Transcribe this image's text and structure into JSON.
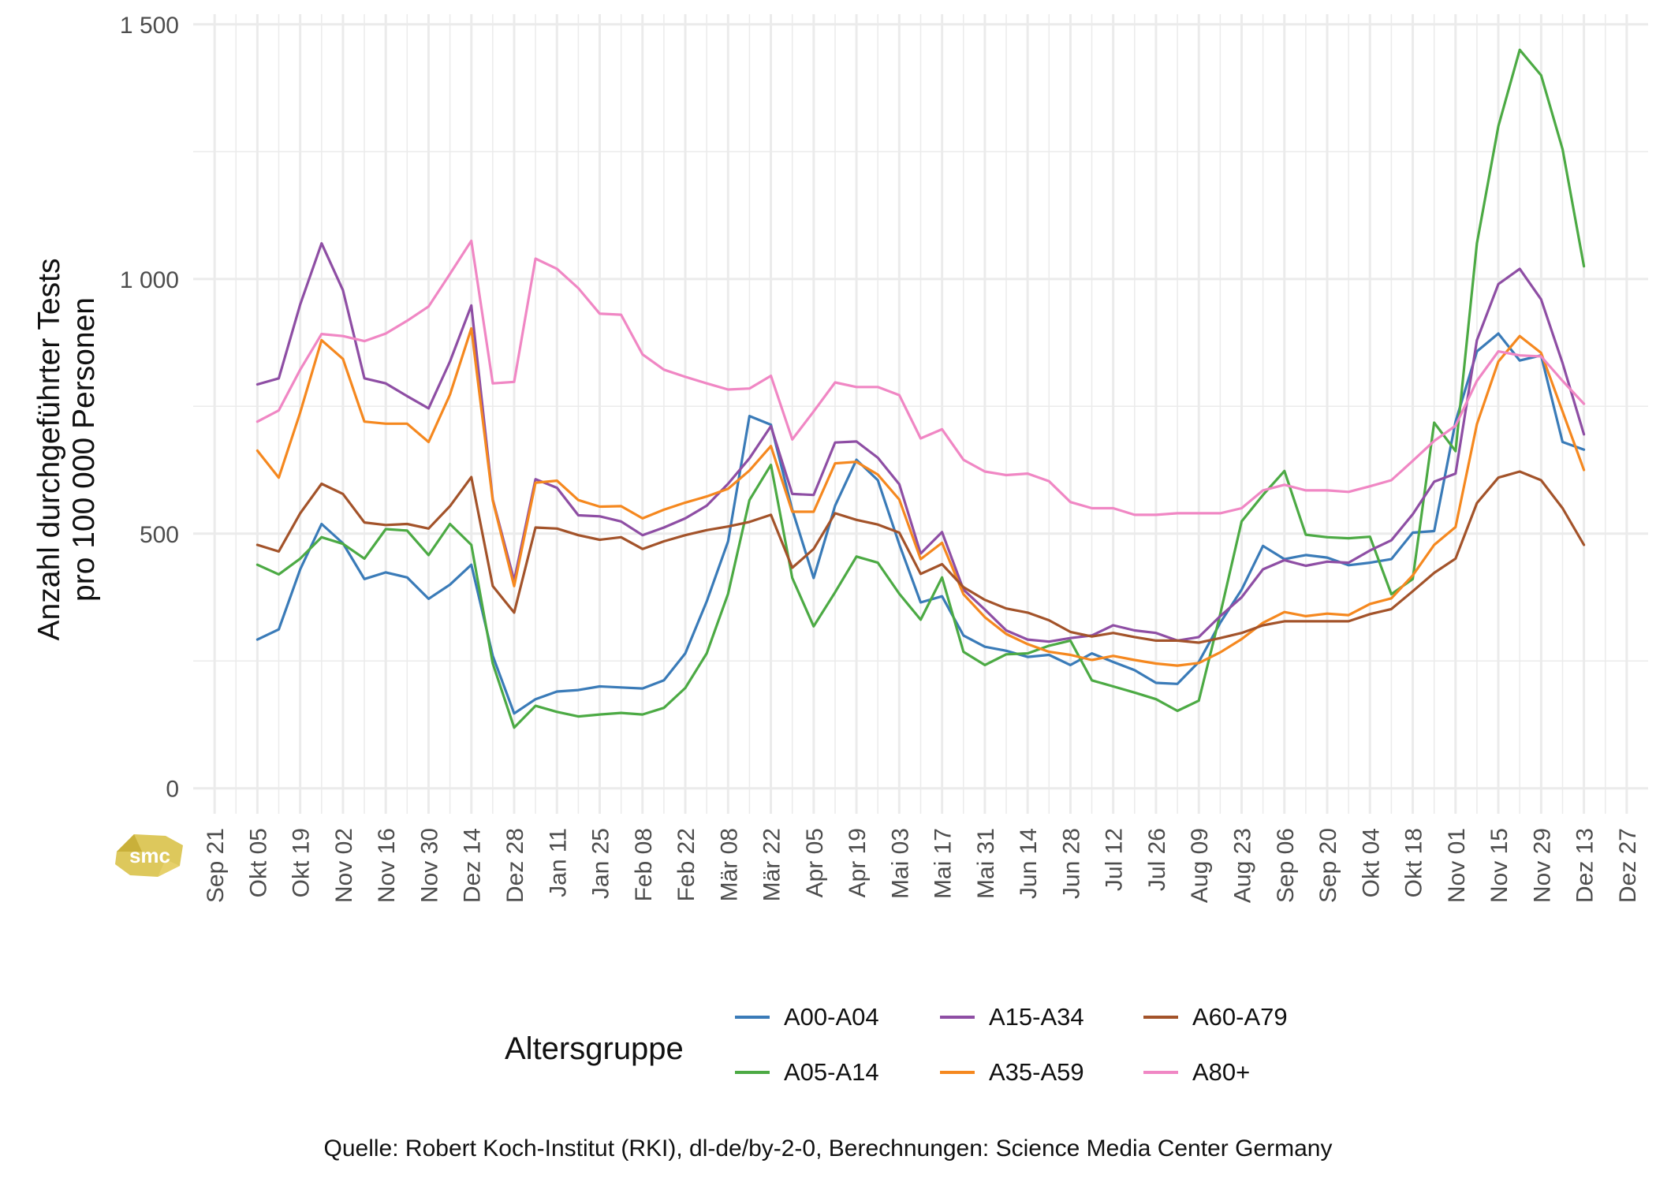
{
  "chart_data": {
    "type": "line",
    "title": "",
    "xlabel": "",
    "ylabel": "Anzahl durchgeführter Tests pro 100 000 Personen",
    "ylabel_lines": [
      "Anzahl durchgeführter Tests",
      "pro 100 000 Personen"
    ],
    "ylim": [
      -50,
      1520
    ],
    "y_ticks": [
      0,
      500,
      1000,
      1500
    ],
    "y_tick_labels": [
      "0",
      "500",
      "1 000",
      "1 500"
    ],
    "x_tick_labels": [
      "Sep 21",
      "Okt 05",
      "Okt 19",
      "Nov 02",
      "Nov 16",
      "Nov 30",
      "Dez 14",
      "Dez 28",
      "Jan 11",
      "Jan 25",
      "Feb 08",
      "Feb 22",
      "Mär 08",
      "Mär 22",
      "Apr 05",
      "Apr 19",
      "Mai 03",
      "Mai 17",
      "Mai 31",
      "Jun 14",
      "Jun 28",
      "Jul 12",
      "Jul 26",
      "Aug 09",
      "Aug 23",
      "Sep 06",
      "Sep 20",
      "Okt 04",
      "Okt 18",
      "Nov 01",
      "Nov 15",
      "Nov 29",
      "Dez 13",
      "Dez 27"
    ],
    "x_range_weeks": [
      -3,
      65
    ],
    "series": [
      {
        "name": "A00-A04",
        "color": "#3a7bb8",
        "start_week": 0,
        "values": [
          292,
          312,
          430,
          519,
          481,
          411,
          424,
          414,
          372,
          400,
          439,
          260,
          147,
          175,
          190,
          193,
          200,
          198,
          196,
          212,
          265,
          367,
          485,
          731,
          714,
          547,
          413,
          555,
          645,
          605,
          479,
          365,
          377,
          300,
          278,
          270,
          258,
          262,
          242,
          265,
          248,
          232,
          207,
          205,
          248,
          325,
          390,
          476,
          450,
          458,
          453,
          438,
          443,
          450,
          502,
          505,
          720,
          858,
          893,
          840,
          850,
          680,
          665
        ]
      },
      {
        "name": "A05-A14",
        "color": "#4caa44",
        "start_week": 0,
        "values": [
          439,
          420,
          451,
          493,
          480,
          451,
          509,
          506,
          458,
          519,
          478,
          245,
          119,
          162,
          150,
          141,
          145,
          148,
          145,
          158,
          197,
          265,
          382,
          566,
          635,
          413,
          318,
          385,
          455,
          443,
          382,
          331,
          414,
          268,
          242,
          263,
          265,
          280,
          290,
          212,
          200,
          188,
          175,
          152,
          172,
          342,
          524,
          576,
          623,
          498,
          493,
          491,
          494,
          381,
          411,
          718,
          662,
          1070,
          1300,
          1450,
          1400,
          1255,
          1025
        ]
      },
      {
        "name": "A15-A34",
        "color": "#8e4ea4",
        "start_week": 0,
        "values": [
          793,
          805,
          950,
          1070,
          978,
          805,
          795,
          770,
          746,
          838,
          948,
          567,
          408,
          607,
          590,
          536,
          534,
          524,
          497,
          512,
          530,
          555,
          598,
          648,
          711,
          578,
          576,
          679,
          681,
          649,
          597,
          461,
          503,
          390,
          351,
          310,
          292,
          288,
          295,
          300,
          320,
          310,
          305,
          290,
          297,
          338,
          375,
          430,
          448,
          437,
          445,
          443,
          467,
          487,
          538,
          602,
          618,
          880,
          990,
          1020,
          960,
          835,
          695
        ]
      },
      {
        "name": "A35-A59",
        "color": "#f5881f",
        "start_week": 0,
        "values": [
          663,
          610,
          738,
          880,
          843,
          720,
          716,
          716,
          680,
          773,
          903,
          565,
          397,
          600,
          604,
          566,
          553,
          554,
          530,
          547,
          561,
          573,
          588,
          624,
          672,
          543,
          543,
          638,
          641,
          616,
          567,
          450,
          482,
          381,
          336,
          303,
          283,
          268,
          262,
          252,
          260,
          252,
          245,
          241,
          246,
          267,
          293,
          325,
          346,
          338,
          343,
          340,
          362,
          373,
          418,
          478,
          513,
          715,
          838,
          888,
          855,
          740,
          625
        ]
      },
      {
        "name": "A60-A79",
        "color": "#a3532a",
        "start_week": 0,
        "values": [
          478,
          465,
          540,
          598,
          578,
          522,
          517,
          519,
          510,
          554,
          611,
          397,
          345,
          512,
          510,
          497,
          488,
          493,
          470,
          485,
          497,
          507,
          514,
          523,
          537,
          433,
          470,
          540,
          527,
          518,
          502,
          421,
          440,
          395,
          370,
          353,
          345,
          330,
          307,
          298,
          305,
          297,
          290,
          290,
          286,
          295,
          305,
          320,
          328,
          328,
          328,
          328,
          342,
          352,
          387,
          423,
          451,
          560,
          610,
          622,
          605,
          550,
          478
        ]
      },
      {
        "name": "A80+",
        "color": "#f087c4",
        "start_week": 0,
        "values": [
          720,
          742,
          822,
          892,
          888,
          878,
          893,
          918,
          946,
          1010,
          1075,
          795,
          798,
          1040,
          1020,
          982,
          932,
          930,
          852,
          822,
          808,
          795,
          783,
          785,
          810,
          685,
          740,
          797,
          788,
          788,
          772,
          687,
          705,
          645,
          622,
          615,
          618,
          603,
          562,
          550,
          550,
          537,
          537,
          540,
          540,
          540,
          550,
          585,
          596,
          585,
          585,
          582,
          593,
          605,
          643,
          682,
          712,
          800,
          858,
          850,
          848,
          800,
          755
        ]
      }
    ]
  },
  "legend": {
    "title": "Altersgruppe",
    "items": [
      "A00-A04",
      "A05-A14",
      "A15-A34",
      "A35-A59",
      "A60-A79",
      "A80+"
    ],
    "colors": [
      "#3a7bb8",
      "#4caa44",
      "#8e4ea4",
      "#f5881f",
      "#a3532a",
      "#f087c4"
    ]
  },
  "caption": "Quelle: Robert Koch-Institut (RKI), dl-de/by-2-0, Berechnungen: Science Media Center Germany",
  "logo": {
    "text": "smc",
    "color": "#d9c24a"
  }
}
